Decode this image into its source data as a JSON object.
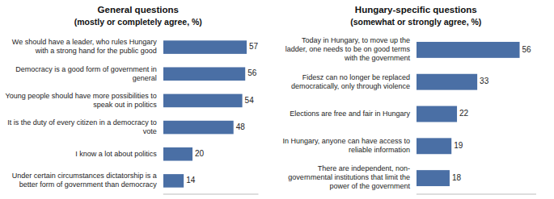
{
  "chart_data": [
    {
      "type": "bar",
      "orientation": "horizontal",
      "title": "General questions",
      "subtitle": "(mostly or completely agree, %)",
      "categories": [
        "We should have a leader, who rules Hungary\nwith a strong hand for the public good",
        "Democracy is a good form of government in\ngeneral",
        "Young people should have more possibilities to\nspeak out in politics",
        "It is the duty of every citizen in a democracy to\nvote",
        "I know a lot about politics",
        "Under certain circumstances dictatorship is a\nbetter form of government than democracy"
      ],
      "values": [
        57,
        56,
        54,
        48,
        20,
        14
      ],
      "color": "#4a6fa5",
      "xlim": [
        0,
        65
      ],
      "data_labels": true,
      "tick_labels": "y",
      "grid": false
    },
    {
      "type": "bar",
      "orientation": "horizontal",
      "title": "Hungary-specific questions",
      "subtitle": "(somewhat or strongly agree, %)",
      "categories": [
        "Today in Hungary, to move up the\nladder, one needs to be on good terms\nwith the government",
        "Fidesz can no longer be replaced\ndemocratically, only through violence",
        "Elections are free and fair in Hungary",
        "In Hungary, anyone can have access to\nreliable information",
        "There are independent, non-\ngovernmental institutions that limit the\npower of the government"
      ],
      "values": [
        56,
        33,
        22,
        19,
        18
      ],
      "color": "#4a6fa5",
      "xlim": [
        0,
        65
      ],
      "data_labels": true,
      "tick_labels": "y",
      "grid": false
    }
  ]
}
